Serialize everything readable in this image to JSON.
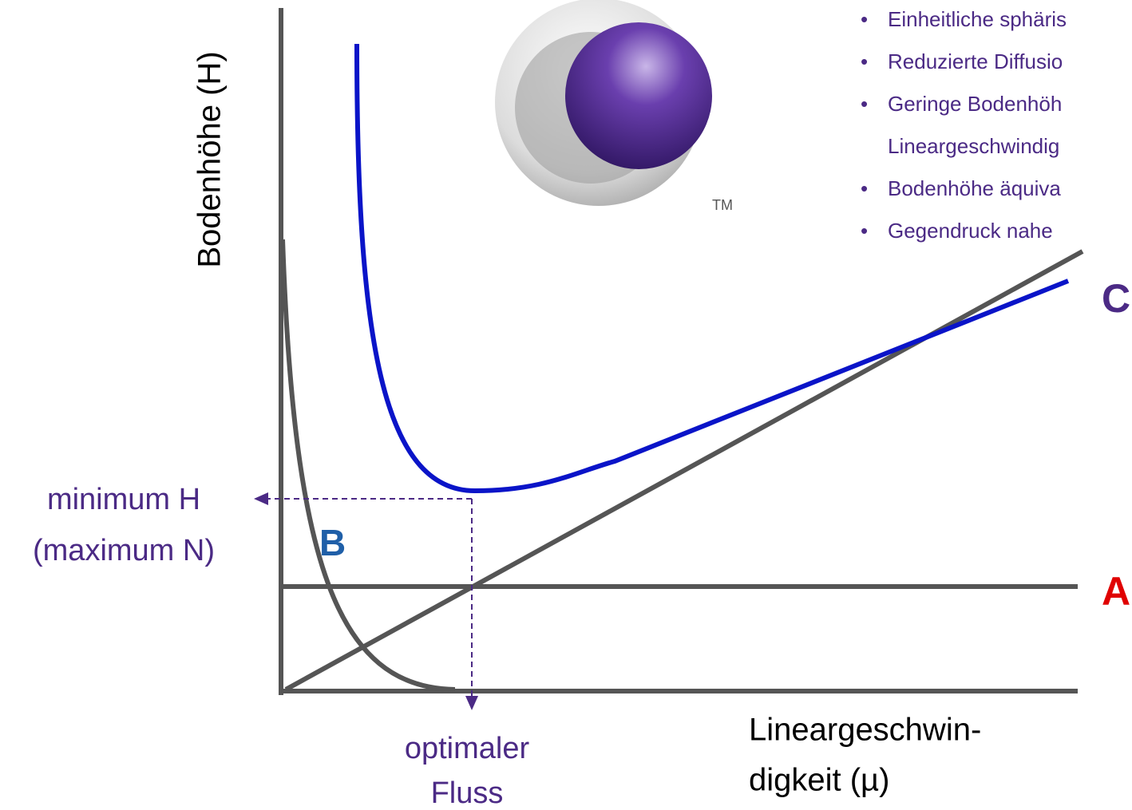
{
  "y_axis_label": "Bodenhöhe (H)",
  "x_axis_label": [
    "Lineargeschwin-",
    "digkeit (µ)"
  ],
  "annotations": {
    "minimum": [
      "minimum H",
      "(maximum N)"
    ],
    "optimal": [
      "optimaler",
      "Fluss"
    ]
  },
  "curve_labels": {
    "a": "A",
    "b": "B",
    "c": "C"
  },
  "logo_mark": "TM",
  "bullets": [
    "Einheitliche sphäris",
    "Reduzierte Diffusio",
    "Geringe Bodenhöh",
    "Lineargeschwindig",
    "Bodenhöhe äquiva",
    "Gegendruck nahe"
  ]
}
